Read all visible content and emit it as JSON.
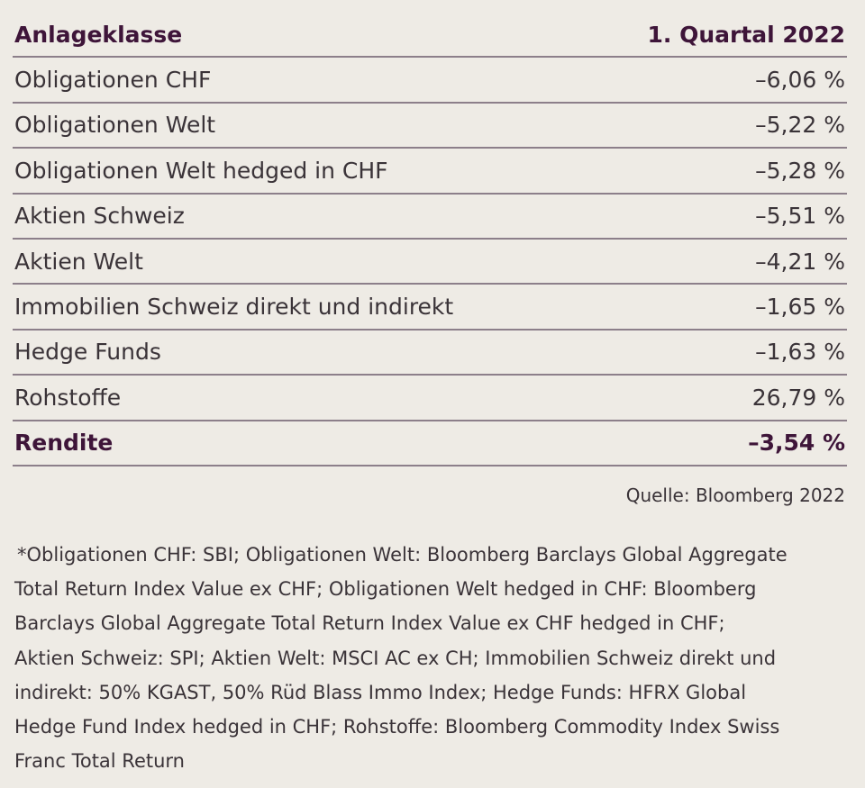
{
  "table": {
    "header": [
      "Anlageklasse",
      "1. Quartal 2022"
    ],
    "rows": [
      [
        "Obligationen CHF",
        "–6,06 %"
      ],
      [
        "Obligationen Welt",
        "–5,22 %"
      ],
      [
        "Obligationen Welt hedged in CHF",
        "–5,28 %"
      ],
      [
        "Aktien Schweiz",
        "–5,51 %"
      ],
      [
        "Aktien Welt",
        "–4,21 %"
      ],
      [
        "Immobilien Schweiz direkt und indirekt",
        "–1,65 %"
      ],
      [
        "Hedge Funds",
        "–1,63 %"
      ],
      [
        "Rohstoffe",
        "26,79 %"
      ]
    ],
    "total": [
      "Rendite",
      "–3,54 %"
    ]
  },
  "source": "Quelle: Bloomberg 2022",
  "footnote": [
    "*Obligationen CHF: SBI; Obligationen Welt: Bloomberg Barclays Global Aggregate",
    "Total Return Index Value ex CHF; Obligationen Welt hedged in CHF: Bloomberg",
    "Barclays Global Aggregate Total Return Index Value ex CHF hedged in CHF;",
    "Aktien Schweiz: SPI; Aktien Welt: MSCI AC ex CH; Immobilien Schweiz direkt und",
    "indirekt: 50% KGAST, 50% Rüd Blass Immo Index; Hedge Funds: HFRX Global",
    "Hedge Fund Index hedged in CHF; Rohstoffe: Bloomberg Commodity Index Swiss",
    "Franc Total Return"
  ]
}
